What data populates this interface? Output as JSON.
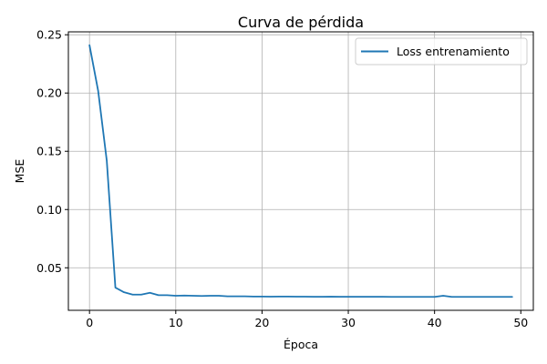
{
  "colors": {
    "line": "#1f77b4",
    "grid": "#b0b0b0",
    "axis": "#000000",
    "background": "#ffffff"
  },
  "chart_data": {
    "type": "line",
    "title": "Curva de pérdida",
    "xlabel": "Época",
    "ylabel": "MSE",
    "xlim": [
      -2.45,
      51.45
    ],
    "ylim": [
      0.0135,
      0.2525
    ],
    "x_ticks": [
      0,
      10,
      20,
      30,
      40,
      50
    ],
    "y_ticks": [
      0.05,
      0.1,
      0.15,
      0.2,
      0.25
    ],
    "x_tick_labels": [
      "0",
      "10",
      "20",
      "30",
      "40",
      "50"
    ],
    "y_tick_labels": [
      "0.05",
      "0.10",
      "0.15",
      "0.20",
      "0.25"
    ],
    "grid": true,
    "legend_position": "top-right",
    "series": [
      {
        "name": "Loss entrenamiento",
        "x": [
          0,
          1,
          2,
          3,
          4,
          5,
          6,
          7,
          8,
          9,
          10,
          11,
          12,
          13,
          14,
          15,
          16,
          17,
          18,
          19,
          20,
          21,
          22,
          23,
          24,
          25,
          26,
          27,
          28,
          29,
          30,
          31,
          32,
          33,
          34,
          35,
          36,
          37,
          38,
          39,
          40,
          41,
          42,
          43,
          44,
          45,
          46,
          47,
          48,
          49
        ],
        "values": [
          0.241,
          0.202,
          0.142,
          0.033,
          0.029,
          0.027,
          0.027,
          0.0285,
          0.0265,
          0.0265,
          0.026,
          0.0262,
          0.026,
          0.0258,
          0.026,
          0.026,
          0.0255,
          0.0255,
          0.0255,
          0.0253,
          0.0253,
          0.0252,
          0.0253,
          0.0253,
          0.0252,
          0.0252,
          0.0251,
          0.0251,
          0.0252,
          0.0251,
          0.0251,
          0.0251,
          0.0251,
          0.0251,
          0.0251,
          0.025,
          0.025,
          0.025,
          0.025,
          0.025,
          0.025,
          0.026,
          0.025,
          0.025,
          0.025,
          0.025,
          0.025,
          0.025,
          0.025,
          0.025
        ]
      }
    ]
  }
}
